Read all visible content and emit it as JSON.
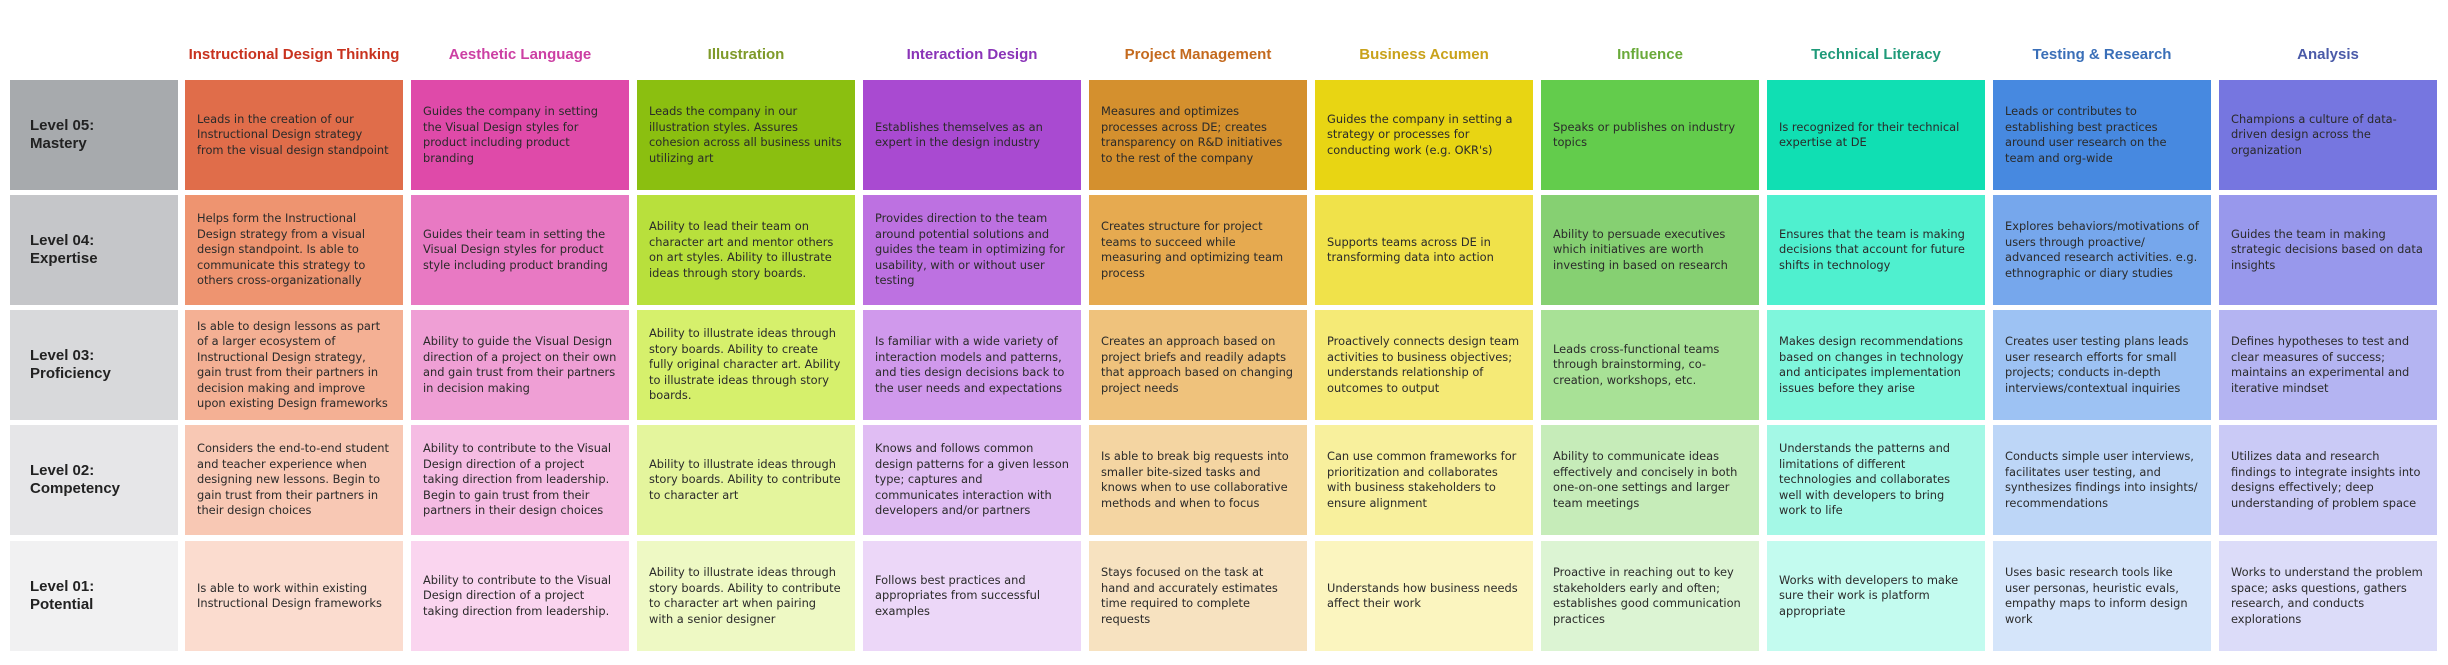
{
  "columns": [
    {
      "name": "Instructional  Design Thinking",
      "color": "#c8321e"
    },
    {
      "name": "Aesthetic Language",
      "color": "#cc3fa3"
    },
    {
      "name": "Illustration",
      "color": "#7f9a2a"
    },
    {
      "name": "Interaction Design",
      "color": "#8a34b8"
    },
    {
      "name": "Project Management",
      "color": "#c46a1e"
    },
    {
      "name": "Business Acumen",
      "color": "#c9a21a"
    },
    {
      "name": "Influence",
      "color": "#6aaa3a"
    },
    {
      "name": "Technical Literacy",
      "color": "#1f9a79"
    },
    {
      "name": "Testing & Research",
      "color": "#3a6fb8"
    },
    {
      "name": "Analysis",
      "color": "#4a5aa8"
    }
  ],
  "rows": [
    {
      "label": "Level 05:\nMastery",
      "color": "#a7aaad"
    },
    {
      "label": "Level 04:\nExpertise",
      "color": "#c5c6c9"
    },
    {
      "label": "Level 03:\nProficiency",
      "color": "#d8d9db"
    },
    {
      "label": "Level 02:\nCompetency",
      "color": "#e6e6e8"
    },
    {
      "label": "Level 01:\nPotential",
      "color": "#f1f1f2"
    }
  ],
  "palette": [
    [
      "#e06d4a",
      "#df4aa9",
      "#8bbf10",
      "#a94ad1",
      "#d4902e",
      "#e8d513",
      "#63cc4c",
      "#10dfb3",
      "#4789e0",
      "#7676e0"
    ],
    [
      "#ee9470",
      "#e879c3",
      "#b8e03c",
      "#bd71e1",
      "#e6aa50",
      "#f0e24a",
      "#86d072",
      "#4ff0cf",
      "#76a7ec",
      "#9898ec"
    ],
    [
      "#f4b094",
      "#ef9fd5",
      "#d6f06c",
      "#d099ec",
      "#efc27c",
      "#f5ea76",
      "#a8e196",
      "#7ff6dc",
      "#9dc2f3",
      "#b4b4f2"
    ],
    [
      "#f8c8b4",
      "#f5bce3",
      "#e4f59d",
      "#e0bdf3",
      "#f4d5a2",
      "#f8f09d",
      "#c6ecb9",
      "#a4f8e6",
      "#bdd6f7",
      "#cacaf6"
    ],
    [
      "#fbdccf",
      "#fad5ef",
      "#eef9c4",
      "#ecd7f8",
      "#f7e2c0",
      "#fbf5bf",
      "#dcf4d3",
      "#c3fbef",
      "#d5e5fa",
      "#dcdcf9"
    ]
  ],
  "cells": [
    [
      "Leads in the creation of our Instructional Design strategy from the visual design standpoint",
      "Guides the company in setting the Visual Design styles for product including product branding",
      "Leads the company in our illustration styles. Assures cohesion across all business units utilizing art",
      "Establishes themselves as an expert in the design industry",
      "Measures and optimizes processes across DE; creates transparency on R&D initiatives to the rest of the company",
      "Guides the company in setting a strategy or processes for conducting work (e.g. OKR's)",
      "Speaks or publishes on industry topics",
      "Is recognized for their technical expertise at DE",
      "Leads or contributes to establishing best practices around user research on the team and org-wide",
      "Champions a culture of data-driven design across the organization"
    ],
    [
      "Helps form the Instructional Design strategy from a visual design standpoint. Is able to communicate this strategy to others cross-organizationally",
      "Guides their team in setting the Visual Design styles for product style including product branding",
      "Ability to lead their team on character art and mentor others on art styles. Ability to illustrate ideas through story boards.",
      "Provides direction to the team around potential solutions and guides the team in optimizing for usability, with or without user testing",
      "Creates structure for project teams to succeed while measuring and optimizing team process",
      "Supports teams across DE in transforming data into action",
      "Ability to persuade executives which initiatives are worth investing in based on research",
      "Ensures that the team is making decisions that account for future shifts in technology",
      "Explores behaviors/motivations of users through proactive/ advanced research activities. e.g. ethnographic or diary studies",
      "Guides the team in making strategic decisions based on data insights"
    ],
    [
      "Is able to design lessons as part of a larger ecosystem of Instructional Design strategy, gain trust from their partners in decision making and improve upon existing Design frameworks",
      "Ability to guide the Visual Design direction of a project on their own and gain trust from their partners in decision making",
      "Ability to illustrate ideas through story boards. Ability to create fully original character art. Ability to illustrate ideas through story boards.",
      "Is familiar with a wide variety of interaction models and patterns, and ties design decisions back to the user needs and expectations",
      "Creates an approach based on project briefs and readily adapts that approach based on changing project needs",
      "Proactively connects design team activities to business objectives; understands relationship of outcomes to output",
      "Leads cross-functional teams through brainstorming, co-creation, workshops, etc.",
      "Makes design recommendations based on changes in technology and anticipates implementation issues before they arise",
      "Creates user testing plans leads user research efforts for small projects; conducts in-depth interviews/contextual inquiries",
      "Defines hypotheses to test and clear measures of success; maintains an experimental and iterative mindset"
    ],
    [
      "Considers the end-to-end student and teacher experience when designing new lessons. Begin to gain trust from their partners in their design choices",
      "Ability to contribute to the Visual Design direction of a project taking direction from leadership. Begin to gain trust from their partners in their design choices",
      "Ability to illustrate ideas through story boards. Ability to contribute to character art",
      "Knows and follows common design patterns for a given lesson type; captures and communicates interaction with developers and/or partners",
      "Is able to break big requests into smaller bite-sized tasks and knows when to use collaborative methods and when to focus",
      "Can use common frameworks for prioritization and collaborates with business stakeholders to ensure alignment",
      "Ability to communicate ideas effectively and concisely in both one-on-one settings and larger team meetings",
      "Understands the patterns and limitations of different technologies and collaborates well with developers to bring work to life",
      "Conducts simple user interviews, facilitates user testing, and synthesizes findings into insights/ recommendations",
      "Utilizes data and research findings to integrate insights into designs effectively; deep understanding of problem space"
    ],
    [
      "Is able to work within existing Instructional Design frameworks",
      "Ability to contribute to the Visual Design direction of a project taking direction from leadership.",
      "Ability to illustrate ideas through story boards. Ability to contribute to character art when pairing with a senior designer",
      "Follows best practices and appropriates from successful examples",
      "Stays focused on the task at hand and accurately estimates time required to complete requests",
      "Understands how business needs affect their work",
      "Proactive in reaching out to key stakeholders early and often; establishes good communication practices",
      "Works with developers to make sure their work is platform appropriate",
      "Uses basic research tools like user personas, heuristic evals, empathy maps to inform design work",
      "Works to understand the problem space; asks questions, gathers research, and conducts explorations"
    ]
  ]
}
